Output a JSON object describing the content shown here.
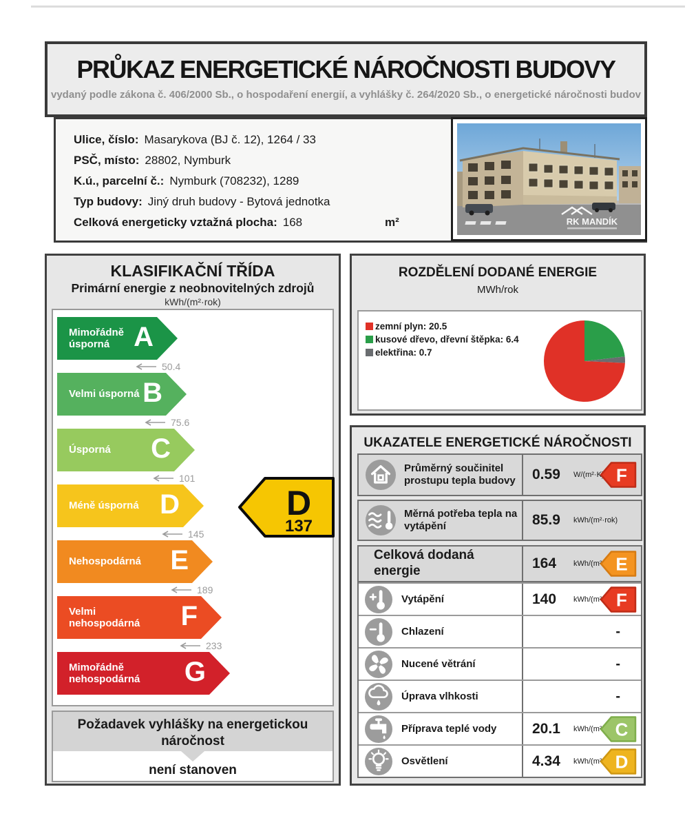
{
  "page": {
    "title": "PRŮKAZ ENERGETICKÉ NÁROČNOSTI BUDOVY",
    "subtitle": "vydaný podle zákona č. 406/2000 Sb., o hospodaření energií, a vyhlášky č. 264/2020 Sb., o energetické náročnosti budov"
  },
  "building": {
    "fields": [
      {
        "label": "Ulice, číslo:",
        "value": "Masarykova (BJ č. 12), 1264 / 33"
      },
      {
        "label": "PSČ, místo:",
        "value": "28802, Nymburk"
      },
      {
        "label": "K.ú., parcelní č.:",
        "value": "Nymburk (708232), 1289"
      },
      {
        "label": "Typ budovy:",
        "value": "Jiný druh budovy - Bytová jednotka"
      },
      {
        "label": "Celková energeticky vztažná plocha:",
        "value": "168",
        "unit": "m²"
      }
    ],
    "photo_watermark": "RK MANDÍK"
  },
  "classification": {
    "title": "KLASIFIKAČNÍ TŘÍDA",
    "subtitle": "Primární energie z neobnovitelných zdrojů",
    "unit": "kWh/(m²·rok)",
    "classes": [
      {
        "letter": "A",
        "label": "Mimořádně úsporná",
        "color": "#1b9447",
        "threshold": "50.4"
      },
      {
        "letter": "B",
        "label": "Velmi úsporná",
        "color": "#55b15e",
        "threshold": "75.6"
      },
      {
        "letter": "C",
        "label": "Úsporná",
        "color": "#97ca5e",
        "threshold": "101"
      },
      {
        "letter": "D",
        "label": "Méně úsporná",
        "color": "#f6c51c",
        "threshold": "145"
      },
      {
        "letter": "E",
        "label": "Nehospodárná",
        "color": "#f18a20",
        "threshold": "189"
      },
      {
        "letter": "F",
        "label": "Velmi nehospodárná",
        "color": "#eb4c23",
        "threshold": "233"
      },
      {
        "letter": "G",
        "label": "Mimořádně nehospodárná",
        "color": "#d2212a",
        "threshold": null
      }
    ],
    "current": {
      "letter": "D",
      "value": "137",
      "color": "#f6c602"
    },
    "requirement": {
      "label": "Požadavek vyhlášky na energetickou náročnost",
      "value": "není stanoven"
    }
  },
  "chart_data": {
    "type": "pie",
    "title": "ROZDĚLENÍ DODANÉ ENERGIE",
    "unit_label": "MWh/rok",
    "legend_position": "left",
    "slices": [
      {
        "label": "zemní plyn",
        "value": 20.5,
        "color": "#e03127"
      },
      {
        "label": "kusové dřevo, dřevní štěpka",
        "value": 6.4,
        "color": "#2a9e49"
      },
      {
        "label": "elektřina",
        "value": 0.7,
        "color": "#6a6d70"
      }
    ]
  },
  "indicators": {
    "title": "UKAZATELE ENERGETICKÉ NÁROČNOSTI",
    "rows": [
      {
        "style": "boxed",
        "icon": "house-icon",
        "label": "Průměrný součinitel prostupu tepla budovy",
        "value": "0.59",
        "unit": "W/(m²·K)",
        "class": "F",
        "badge_color": "#e73b22",
        "badge_border": "#bf2c17"
      },
      {
        "style": "boxed",
        "icon": "heat-waves-icon",
        "label": "Měrná potřeba tepla na vytápění",
        "value": "85.9",
        "unit": "kWh/(m²·rok)",
        "class": null
      },
      {
        "style": "total",
        "icon": null,
        "label": "Celková dodaná energie",
        "value": "164",
        "unit": "kWh/(m²·rok)",
        "class": "E",
        "badge_color": "#f49421",
        "badge_border": "#d67b12"
      },
      {
        "style": "plain",
        "icon": "thermometer-plus-icon",
        "label": "Vytápění",
        "value": "140",
        "unit": "kWh/(m²·rok)",
        "class": "F",
        "badge_color": "#e73b22",
        "badge_border": "#bf2c17"
      },
      {
        "style": "plain",
        "icon": "thermometer-minus-icon",
        "label": "Chlazení",
        "value": "-",
        "unit": null,
        "class": null
      },
      {
        "style": "plain",
        "icon": "fan-icon",
        "label": "Nucené větrání",
        "value": "-",
        "unit": null,
        "class": null
      },
      {
        "style": "plain",
        "icon": "cloud-drop-icon",
        "label": "Úprava vlhkosti",
        "value": "-",
        "unit": null,
        "class": null
      },
      {
        "style": "plain",
        "icon": "faucet-icon",
        "label": "Příprava teplé vody",
        "value": "20.1",
        "unit": "kWh/(m²·rok)",
        "class": "C",
        "badge_color": "#9cc568",
        "badge_border": "#7fae4b"
      },
      {
        "style": "plain",
        "icon": "bulb-icon",
        "label": "Osvětlení",
        "value": "4.34",
        "unit": "kWh/(m²·rok)",
        "class": "D",
        "badge_color": "#eeb41f",
        "badge_border": "#cf9712"
      }
    ]
  }
}
